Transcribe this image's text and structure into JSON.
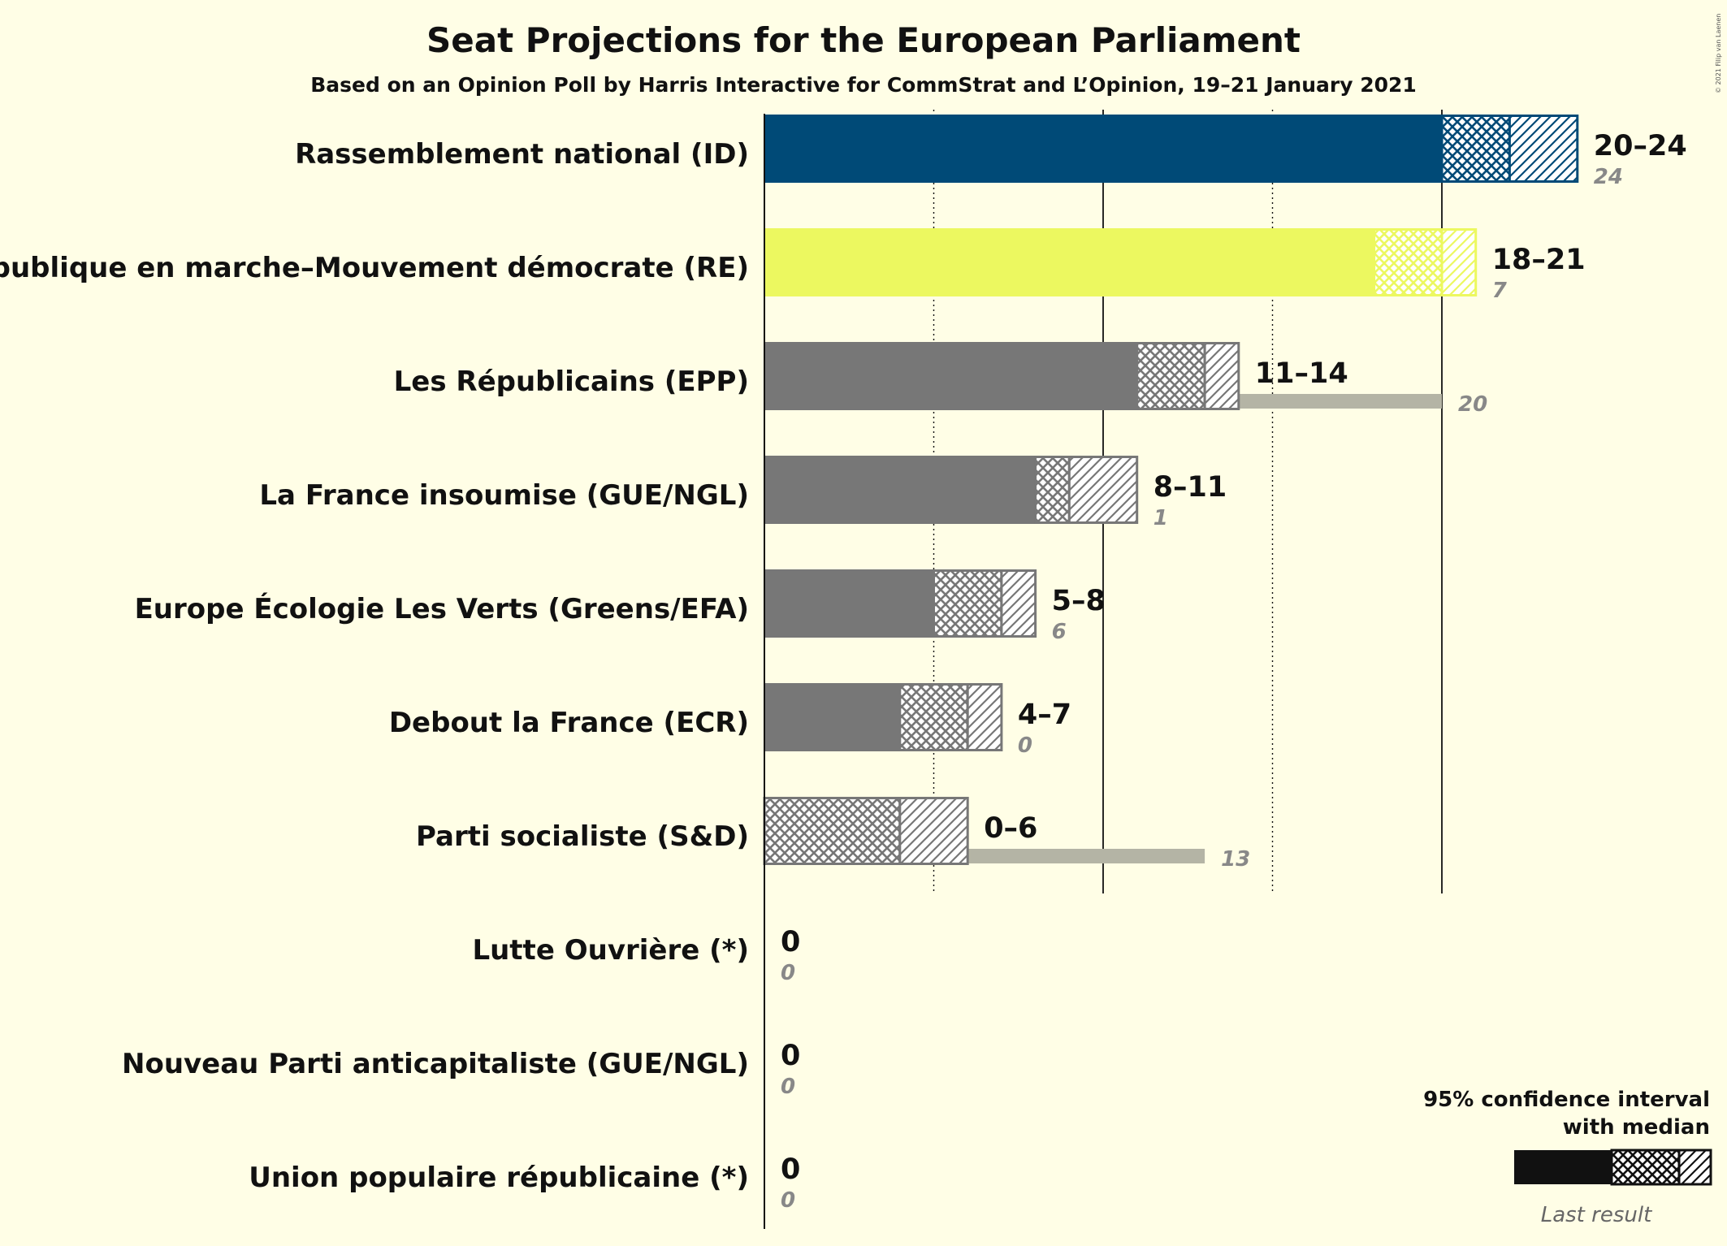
{
  "chart_data": {
    "type": "bar",
    "title": "Seat Projections for the European Parliament",
    "subtitle": "Based on an Opinion Poll by Harris Interactive for CommStrat and L’Opinion, 19–21 January 2021",
    "copyright": "© 2021 Filip van Laenen",
    "xlim": [
      0,
      24
    ],
    "gridlines": [
      5,
      10,
      15,
      20
    ],
    "series": [
      {
        "party": "Rassemblement national (ID)",
        "color": "#004A77",
        "last_color": "#7F9DAB",
        "low": 20,
        "median": 22,
        "high": 24,
        "label": "20–24",
        "last": 24,
        "last_label": "24"
      },
      {
        "party": "La République en marche–Mouvement démocrate (RE)",
        "color": "#ECF860",
        "last_color": "#F1F7A6",
        "low": 18,
        "median": 20,
        "high": 21,
        "label": "18–21",
        "last": 7,
        "last_label": "7"
      },
      {
        "party": "Les Républicains (EPP)",
        "color": "#777777",
        "last_color": "#B4B4A5",
        "low": 11,
        "median": 13,
        "high": 14,
        "label": "11–14",
        "last": 20,
        "last_label": "20"
      },
      {
        "party": "La France insoumise (GUE/NGL)",
        "color": "#777777",
        "last_color": "#B4B4A5",
        "low": 8,
        "median": 9,
        "high": 11,
        "label": "8–11",
        "last": 1,
        "last_label": "1"
      },
      {
        "party": "Europe Écologie Les Verts (Greens/EFA)",
        "color": "#777777",
        "last_color": "#B4B4A5",
        "low": 5,
        "median": 7,
        "high": 8,
        "label": "5–8",
        "last": 6,
        "last_label": "6"
      },
      {
        "party": "Debout la France (ECR)",
        "color": "#777777",
        "last_color": "#B4B4A5",
        "low": 4,
        "median": 6,
        "high": 7,
        "label": "4–7",
        "last": 0,
        "last_label": "0"
      },
      {
        "party": "Parti socialiste (S&D)",
        "color": "#777777",
        "last_color": "#B4B4A5",
        "low": 0,
        "median": 4,
        "high": 6,
        "label": "0–6",
        "last": 13,
        "last_label": "13"
      },
      {
        "party": "Lutte Ouvrière (*)",
        "color": "#777777",
        "last_color": "#B4B4A5",
        "low": 0,
        "median": 0,
        "high": 0,
        "label": "0",
        "last": 0,
        "last_label": "0"
      },
      {
        "party": "Nouveau Parti anticapitaliste (GUE/NGL)",
        "color": "#777777",
        "last_color": "#B4B4A5",
        "low": 0,
        "median": 0,
        "high": 0,
        "label": "0",
        "last": 0,
        "last_label": "0"
      },
      {
        "party": "Union populaire républicaine (*)",
        "color": "#777777",
        "last_color": "#B4B4A5",
        "low": 0,
        "median": 0,
        "high": 0,
        "label": "0",
        "last": 0,
        "last_label": "0"
      }
    ],
    "legend": {
      "line1": "95% confidence interval",
      "line2": "with median",
      "last_result": "Last result",
      "position": "bottom-right"
    }
  }
}
